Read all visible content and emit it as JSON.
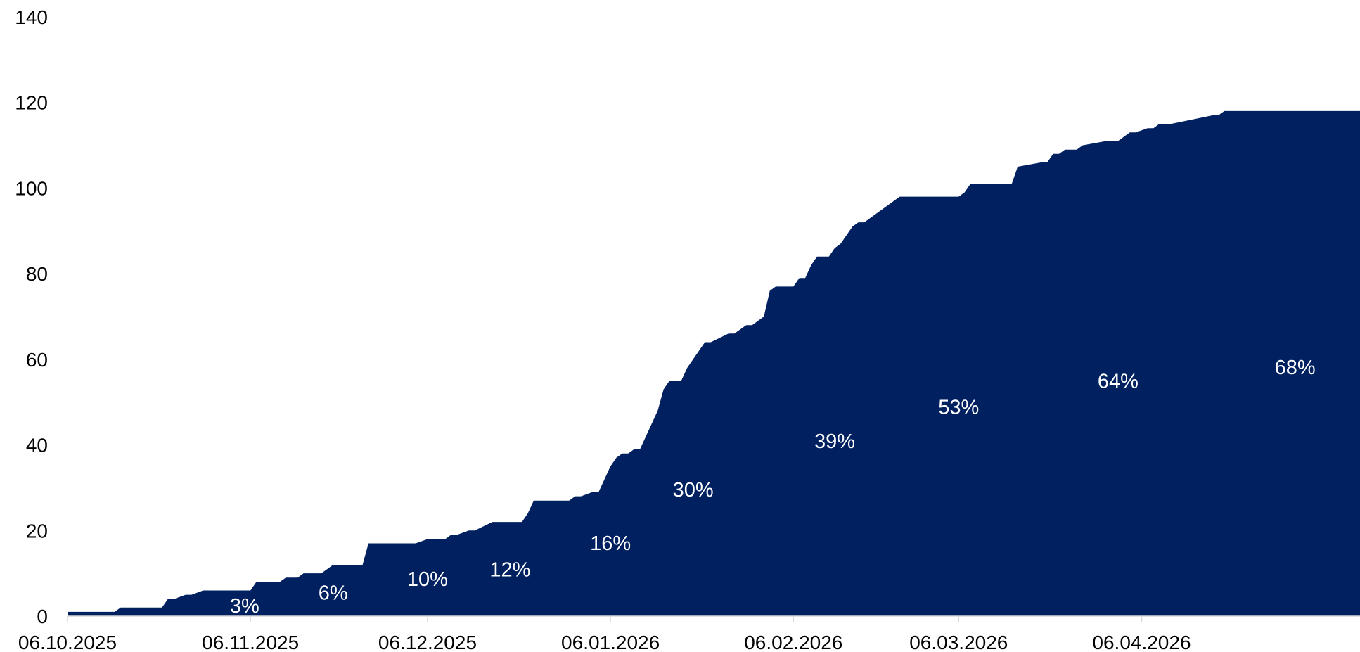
{
  "chart_data": {
    "type": "area",
    "title": "",
    "xlabel": "",
    "ylabel": "",
    "ylim": [
      0,
      140
    ],
    "xlim": [
      "2025-10-06",
      "2026-05-13"
    ],
    "grid": false,
    "legend": "none",
    "color": "#002060",
    "y_ticks": [
      "0",
      "20",
      "40",
      "60",
      "80",
      "100",
      "120",
      "140"
    ],
    "x_tick_labels": [
      {
        "label": "06.10.2025",
        "date": "2025-10-06"
      },
      {
        "label": "06.11.2025",
        "date": "2025-11-06"
      },
      {
        "label": "06.12.2025",
        "date": "2025-12-06"
      },
      {
        "label": "06.01.2026",
        "date": "2026-01-06"
      },
      {
        "label": "06.02.2026",
        "date": "2026-02-06"
      },
      {
        "label": "06.03.2026",
        "date": "2026-03-06"
      },
      {
        "label": "06.04.2026",
        "date": "2026-04-06"
      }
    ],
    "series": [
      {
        "x": [
          "2025-10-06",
          "2025-10-08",
          "2025-10-14",
          "2025-10-15",
          "2025-10-22",
          "2025-10-23",
          "2025-10-24",
          "2025-10-26",
          "2025-10-27",
          "2025-10-29",
          "2025-11-02",
          "2025-11-03",
          "2025-11-06",
          "2025-11-07",
          "2025-11-11",
          "2025-11-12",
          "2025-11-14",
          "2025-11-15",
          "2025-11-18",
          "2025-11-19",
          "2025-11-20",
          "2025-11-25",
          "2025-11-26",
          "2025-12-04",
          "2025-12-06",
          "2025-12-09",
          "2025-12-10",
          "2025-12-11",
          "2025-12-13",
          "2025-12-14",
          "2025-12-17",
          "2025-12-22",
          "2025-12-23",
          "2025-12-24",
          "2025-12-30",
          "2025-12-31",
          "2026-01-01",
          "2026-01-03",
          "2026-01-04",
          "2026-01-06",
          "2026-01-07",
          "2026-01-08",
          "2026-01-09",
          "2026-01-10",
          "2026-01-11",
          "2026-01-14",
          "2026-01-15",
          "2026-01-16",
          "2026-01-18",
          "2026-01-19",
          "2026-01-22",
          "2026-01-23",
          "2026-01-26",
          "2026-01-27",
          "2026-01-29",
          "2026-01-30",
          "2026-02-01",
          "2026-02-02",
          "2026-02-03",
          "2026-02-06",
          "2026-02-07",
          "2026-02-08",
          "2026-02-09",
          "2026-02-10",
          "2026-02-12",
          "2026-02-13",
          "2026-02-14",
          "2026-02-15",
          "2026-02-16",
          "2026-02-17",
          "2026-02-18",
          "2026-02-19",
          "2026-02-21",
          "2026-02-22",
          "2026-02-24",
          "2026-03-06",
          "2026-03-07",
          "2026-03-08",
          "2026-03-15",
          "2026-03-16",
          "2026-03-20",
          "2026-03-21",
          "2026-03-22",
          "2026-03-23",
          "2026-03-24",
          "2026-03-26",
          "2026-03-27",
          "2026-03-31",
          "2026-04-01",
          "2026-04-02",
          "2026-04-04",
          "2026-04-05",
          "2026-04-07",
          "2026-04-08",
          "2026-04-09",
          "2026-04-11",
          "2026-04-18",
          "2026-04-19",
          "2026-04-20",
          "2026-05-13"
        ],
        "values": [
          1,
          1,
          1,
          2,
          2,
          4,
          4,
          5,
          5,
          6,
          6,
          6,
          6,
          8,
          8,
          9,
          9,
          10,
          10,
          11,
          12,
          12,
          17,
          17,
          18,
          18,
          19,
          19,
          20,
          20,
          22,
          22,
          24,
          27,
          27,
          28,
          28,
          29,
          29,
          35,
          37,
          38,
          38,
          39,
          39,
          48,
          53,
          55,
          55,
          58,
          64,
          64,
          66,
          66,
          68,
          68,
          70,
          76,
          77,
          77,
          79,
          79,
          82,
          84,
          84,
          86,
          87,
          89,
          91,
          92,
          92,
          93,
          95,
          96,
          98,
          98,
          99,
          101,
          101,
          105,
          106,
          106,
          108,
          108,
          109,
          109,
          110,
          111,
          111,
          111,
          113,
          113,
          114,
          114,
          115,
          115,
          117,
          117,
          118,
          118
        ]
      }
    ],
    "annotations": [
      {
        "text": "3%",
        "x": "2025-11-05",
        "y": 2.5
      },
      {
        "text": "6%",
        "x": "2025-11-20",
        "y": 5.5
      },
      {
        "text": "10%",
        "x": "2025-12-06",
        "y": 8.7
      },
      {
        "text": "12%",
        "x": "2025-12-20",
        "y": 10.9
      },
      {
        "text": "16%",
        "x": "2026-01-06",
        "y": 17.1
      },
      {
        "text": "30%",
        "x": "2026-01-20",
        "y": 29.6
      },
      {
        "text": "39%",
        "x": "2026-02-13",
        "y": 40.9
      },
      {
        "text": "53%",
        "x": "2026-03-06",
        "y": 48.9
      },
      {
        "text": "64%",
        "x": "2026-04-02",
        "y": 55.0
      },
      {
        "text": "68%",
        "x": "2026-05-02",
        "y": 58.2
      }
    ]
  }
}
